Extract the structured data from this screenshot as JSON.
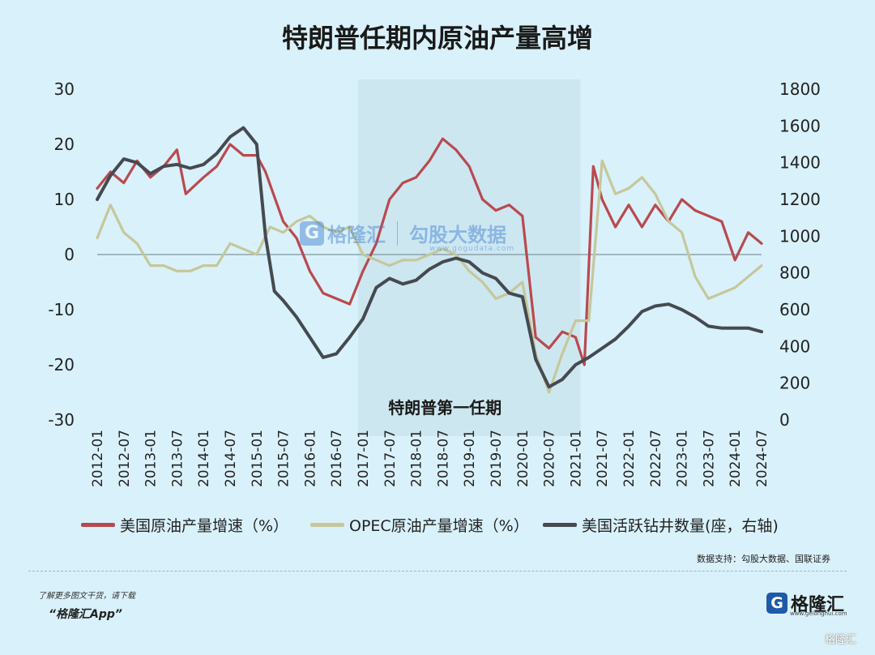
{
  "title": "特朗普任期内原油产量高增",
  "chart_data": {
    "type": "line",
    "y_left": {
      "min": -30,
      "max": 30,
      "ticks": [
        30,
        20,
        10,
        0,
        -10,
        -20,
        -30
      ]
    },
    "y_right": {
      "min": 0,
      "max": 1800,
      "ticks": [
        1800,
        1600,
        1400,
        1200,
        1000,
        800,
        600,
        400,
        200,
        0
      ]
    },
    "x_ticks": [
      "2012-01",
      "2012-07",
      "2013-01",
      "2013-07",
      "2014-01",
      "2014-07",
      "2015-01",
      "2015-07",
      "2016-01",
      "2016-07",
      "2017-01",
      "2017-07",
      "2018-01",
      "2018-07",
      "2019-01",
      "2019-07",
      "2020-01",
      "2020-07",
      "2021-01",
      "2021-07",
      "2022-01",
      "2022-07",
      "2023-01",
      "2023-07",
      "2024-01",
      "2024-07"
    ],
    "shaded_period": {
      "start": "2017-01",
      "end": "2021-01",
      "label": "特朗普第一任期"
    },
    "series": [
      {
        "name": "美国原油产量增速（%）",
        "axis": "left",
        "color": "#b84a4f",
        "points": [
          [
            "2012-01",
            12
          ],
          [
            "2012-04",
            15
          ],
          [
            "2012-07",
            13
          ],
          [
            "2012-10",
            17
          ],
          [
            "2013-01",
            14
          ],
          [
            "2013-04",
            16
          ],
          [
            "2013-07",
            19
          ],
          [
            "2013-09",
            11
          ],
          [
            "2014-01",
            14
          ],
          [
            "2014-04",
            16
          ],
          [
            "2014-07",
            20
          ],
          [
            "2014-10",
            18
          ],
          [
            "2015-01",
            18
          ],
          [
            "2015-03",
            15
          ],
          [
            "2015-07",
            6
          ],
          [
            "2015-10",
            3
          ],
          [
            "2016-01",
            -3
          ],
          [
            "2016-04",
            -7
          ],
          [
            "2016-07",
            -8
          ],
          [
            "2016-10",
            -9
          ],
          [
            "2017-01",
            -3
          ],
          [
            "2017-04",
            2
          ],
          [
            "2017-07",
            10
          ],
          [
            "2017-10",
            13
          ],
          [
            "2018-01",
            14
          ],
          [
            "2018-04",
            17
          ],
          [
            "2018-07",
            21
          ],
          [
            "2018-10",
            19
          ],
          [
            "2019-01",
            16
          ],
          [
            "2019-04",
            10
          ],
          [
            "2019-07",
            8
          ],
          [
            "2019-10",
            9
          ],
          [
            "2020-01",
            7
          ],
          [
            "2020-04",
            -15
          ],
          [
            "2020-07",
            -17
          ],
          [
            "2020-10",
            -14
          ],
          [
            "2021-01",
            -15
          ],
          [
            "2021-03",
            -20
          ],
          [
            "2021-05",
            16
          ],
          [
            "2021-07",
            10
          ],
          [
            "2021-10",
            5
          ],
          [
            "2022-01",
            9
          ],
          [
            "2022-04",
            5
          ],
          [
            "2022-07",
            9
          ],
          [
            "2022-10",
            6
          ],
          [
            "2023-01",
            10
          ],
          [
            "2023-04",
            8
          ],
          [
            "2023-07",
            7
          ],
          [
            "2023-10",
            6
          ],
          [
            "2024-01",
            -1
          ],
          [
            "2024-04",
            4
          ],
          [
            "2024-07",
            2
          ]
        ]
      },
      {
        "name": "OPEC原油产量增速（%）",
        "axis": "left",
        "color": "#c6c79a",
        "points": [
          [
            "2012-01",
            3
          ],
          [
            "2012-04",
            9
          ],
          [
            "2012-07",
            4
          ],
          [
            "2012-10",
            2
          ],
          [
            "2013-01",
            -2
          ],
          [
            "2013-04",
            -2
          ],
          [
            "2013-07",
            -3
          ],
          [
            "2013-10",
            -3
          ],
          [
            "2014-01",
            -2
          ],
          [
            "2014-04",
            -2
          ],
          [
            "2014-07",
            2
          ],
          [
            "2014-10",
            1
          ],
          [
            "2015-01",
            0
          ],
          [
            "2015-04",
            5
          ],
          [
            "2015-07",
            4
          ],
          [
            "2015-10",
            6
          ],
          [
            "2016-01",
            7
          ],
          [
            "2016-04",
            5
          ],
          [
            "2016-07",
            4
          ],
          [
            "2016-10",
            5
          ],
          [
            "2017-01",
            0
          ],
          [
            "2017-04",
            -1
          ],
          [
            "2017-07",
            -2
          ],
          [
            "2017-10",
            -1
          ],
          [
            "2018-01",
            -1
          ],
          [
            "2018-04",
            0
          ],
          [
            "2018-07",
            1
          ],
          [
            "2018-10",
            0
          ],
          [
            "2019-01",
            -3
          ],
          [
            "2019-04",
            -5
          ],
          [
            "2019-07",
            -8
          ],
          [
            "2019-10",
            -7
          ],
          [
            "2020-01",
            -5
          ],
          [
            "2020-04",
            -18
          ],
          [
            "2020-07",
            -25
          ],
          [
            "2020-10",
            -18
          ],
          [
            "2021-01",
            -12
          ],
          [
            "2021-04",
            -12
          ],
          [
            "2021-07",
            17
          ],
          [
            "2021-10",
            11
          ],
          [
            "2022-01",
            12
          ],
          [
            "2022-04",
            14
          ],
          [
            "2022-07",
            11
          ],
          [
            "2022-10",
            6
          ],
          [
            "2023-01",
            4
          ],
          [
            "2023-04",
            -4
          ],
          [
            "2023-07",
            -8
          ],
          [
            "2023-10",
            -7
          ],
          [
            "2024-01",
            -6
          ],
          [
            "2024-04",
            -4
          ],
          [
            "2024-07",
            -2
          ]
        ]
      },
      {
        "name": "美国活跃钻井数量(座，右轴)",
        "axis": "right",
        "color": "#454a50",
        "points": [
          [
            "2012-01",
            1200
          ],
          [
            "2012-04",
            1330
          ],
          [
            "2012-07",
            1420
          ],
          [
            "2012-10",
            1400
          ],
          [
            "2013-01",
            1340
          ],
          [
            "2013-04",
            1380
          ],
          [
            "2013-07",
            1390
          ],
          [
            "2013-10",
            1370
          ],
          [
            "2014-01",
            1390
          ],
          [
            "2014-04",
            1450
          ],
          [
            "2014-07",
            1540
          ],
          [
            "2014-10",
            1590
          ],
          [
            "2015-01",
            1500
          ],
          [
            "2015-03",
            1000
          ],
          [
            "2015-05",
            700
          ],
          [
            "2015-07",
            650
          ],
          [
            "2015-10",
            560
          ],
          [
            "2016-01",
            450
          ],
          [
            "2016-04",
            340
          ],
          [
            "2016-07",
            360
          ],
          [
            "2016-10",
            450
          ],
          [
            "2017-01",
            550
          ],
          [
            "2017-04",
            720
          ],
          [
            "2017-07",
            770
          ],
          [
            "2017-10",
            740
          ],
          [
            "2018-01",
            760
          ],
          [
            "2018-04",
            820
          ],
          [
            "2018-07",
            860
          ],
          [
            "2018-10",
            880
          ],
          [
            "2019-01",
            860
          ],
          [
            "2019-04",
            800
          ],
          [
            "2019-07",
            770
          ],
          [
            "2019-10",
            690
          ],
          [
            "2020-01",
            670
          ],
          [
            "2020-04",
            330
          ],
          [
            "2020-07",
            180
          ],
          [
            "2020-10",
            220
          ],
          [
            "2021-01",
            300
          ],
          [
            "2021-04",
            340
          ],
          [
            "2021-07",
            390
          ],
          [
            "2021-10",
            440
          ],
          [
            "2022-01",
            510
          ],
          [
            "2022-04",
            590
          ],
          [
            "2022-07",
            620
          ],
          [
            "2022-10",
            630
          ],
          [
            "2023-01",
            600
          ],
          [
            "2023-04",
            560
          ],
          [
            "2023-07",
            510
          ],
          [
            "2023-10",
            500
          ],
          [
            "2024-01",
            500
          ],
          [
            "2024-04",
            500
          ],
          [
            "2024-07",
            480
          ]
        ]
      }
    ]
  },
  "watermark": {
    "brand": "格隆汇",
    "name2": "勾股大数据",
    "url": "www.gogudata.com"
  },
  "source": "数据支持：勾股大数据、国联证券",
  "footer": {
    "line1": "了解更多图文干货，请下载",
    "line2": "“格隆汇App”",
    "brand_logo": "G",
    "brand_name": "格隆汇",
    "brand_url": "www.gelonghui.com",
    "corner_text": "格隆汇"
  }
}
